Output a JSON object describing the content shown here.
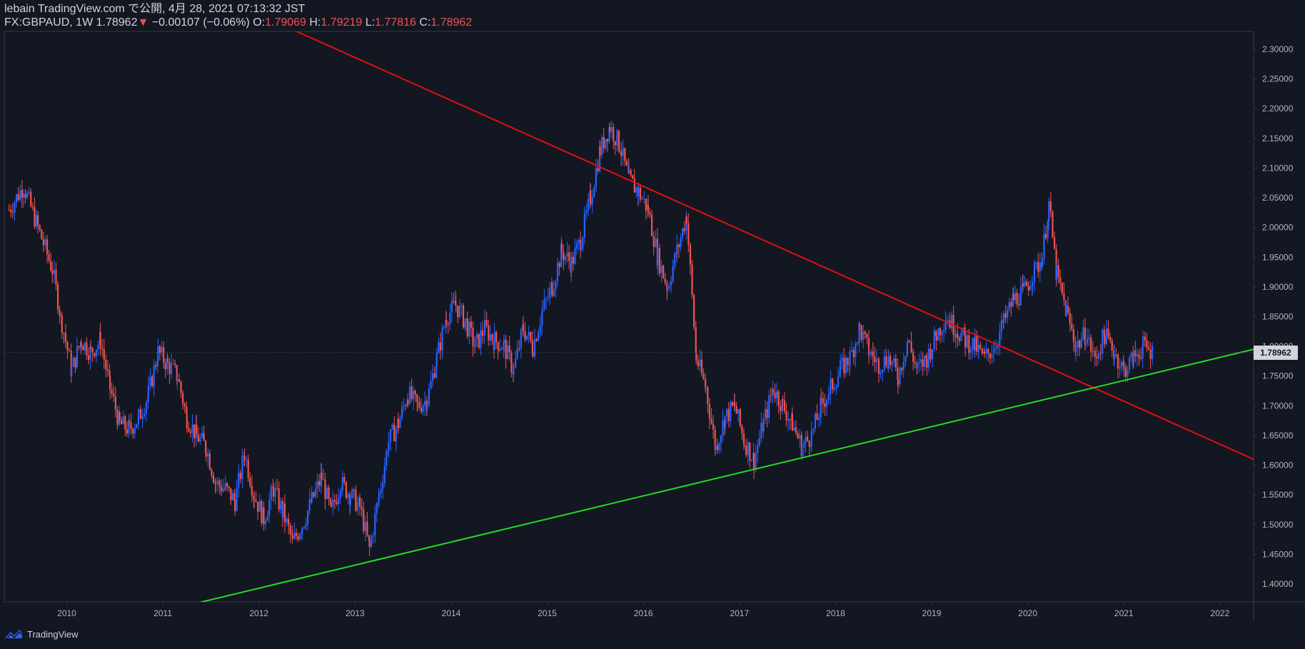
{
  "header": {
    "line1": "lebain TradingView.com で公開, 4月 28, 2021 07:13:32 JST",
    "symbol": "FX:GBPAUD, 1W",
    "last": "1.78962",
    "change_arrow": "▼",
    "change": "−0.00107 (−0.06%)",
    "o_label": "O:",
    "o_value": "1.79069",
    "h_label": "H:",
    "h_value": "1.79219",
    "l_label": "L:",
    "l_value": "1.77816",
    "c_label": "C:",
    "c_value": "1.78962"
  },
  "price_tag": "1.78962",
  "footer": {
    "brand": "TradingView"
  },
  "colors": {
    "background": "#131722",
    "up": "#2962ff",
    "down": "#ef5350",
    "resistance": "#e01010",
    "support": "#22dd22",
    "axis_text": "#b2b5be"
  },
  "chart_data": {
    "type": "candlestick",
    "x_ticks": [
      "2010",
      "2011",
      "2012",
      "2013",
      "2014",
      "2015",
      "2016",
      "2017",
      "2018",
      "2019",
      "2020",
      "2021",
      "2022"
    ],
    "y_ticks": [
      "2.30000",
      "2.25000",
      "2.20000",
      "2.15000",
      "2.10000",
      "2.05000",
      "2.00000",
      "1.95000",
      "1.90000",
      "1.85000",
      "1.80000",
      "1.75000",
      "1.70000",
      "1.65000",
      "1.60000",
      "1.55000",
      "1.50000",
      "1.45000",
      "1.40000"
    ],
    "ylim": [
      1.37,
      2.33
    ],
    "xlim": [
      2009.35,
      2022.35
    ],
    "closes": [
      [
        2009.4,
        2.03
      ],
      [
        2009.55,
        2.07
      ],
      [
        2009.7,
        2.0
      ],
      [
        2009.85,
        1.93
      ],
      [
        2009.95,
        1.84
      ],
      [
        2010.05,
        1.76
      ],
      [
        2010.15,
        1.81
      ],
      [
        2010.25,
        1.79
      ],
      [
        2010.35,
        1.81
      ],
      [
        2010.45,
        1.73
      ],
      [
        2010.55,
        1.67
      ],
      [
        2010.65,
        1.66
      ],
      [
        2010.75,
        1.68
      ],
      [
        2010.85,
        1.72
      ],
      [
        2010.95,
        1.79
      ],
      [
        2011.05,
        1.77
      ],
      [
        2011.15,
        1.75
      ],
      [
        2011.25,
        1.68
      ],
      [
        2011.35,
        1.65
      ],
      [
        2011.45,
        1.63
      ],
      [
        2011.55,
        1.57
      ],
      [
        2011.65,
        1.56
      ],
      [
        2011.75,
        1.54
      ],
      [
        2011.85,
        1.62
      ],
      [
        2011.95,
        1.55
      ],
      [
        2012.05,
        1.51
      ],
      [
        2012.15,
        1.56
      ],
      [
        2012.25,
        1.52
      ],
      [
        2012.35,
        1.47
      ],
      [
        2012.45,
        1.5
      ],
      [
        2012.55,
        1.54
      ],
      [
        2012.65,
        1.58
      ],
      [
        2012.75,
        1.52
      ],
      [
        2012.85,
        1.57
      ],
      [
        2012.95,
        1.55
      ],
      [
        2013.05,
        1.53
      ],
      [
        2013.15,
        1.46
      ],
      [
        2013.25,
        1.55
      ],
      [
        2013.35,
        1.64
      ],
      [
        2013.45,
        1.67
      ],
      [
        2013.55,
        1.72
      ],
      [
        2013.65,
        1.7
      ],
      [
        2013.75,
        1.71
      ],
      [
        2013.85,
        1.78
      ],
      [
        2013.95,
        1.85
      ],
      [
        2014.05,
        1.87
      ],
      [
        2014.15,
        1.84
      ],
      [
        2014.25,
        1.8
      ],
      [
        2014.35,
        1.83
      ],
      [
        2014.45,
        1.81
      ],
      [
        2014.55,
        1.8
      ],
      [
        2014.65,
        1.76
      ],
      [
        2014.75,
        1.83
      ],
      [
        2014.85,
        1.8
      ],
      [
        2014.95,
        1.86
      ],
      [
        2015.05,
        1.9
      ],
      [
        2015.15,
        1.96
      ],
      [
        2015.25,
        1.94
      ],
      [
        2015.35,
        1.98
      ],
      [
        2015.45,
        2.05
      ],
      [
        2015.55,
        2.13
      ],
      [
        2015.65,
        2.17
      ],
      [
        2015.75,
        2.14
      ],
      [
        2015.85,
        2.08
      ],
      [
        2015.95,
        2.06
      ],
      [
        2016.05,
        2.03
      ],
      [
        2016.15,
        1.95
      ],
      [
        2016.25,
        1.9
      ],
      [
        2016.35,
        1.96
      ],
      [
        2016.45,
        2.02
      ],
      [
        2016.55,
        1.78
      ],
      [
        2016.65,
        1.73
      ],
      [
        2016.75,
        1.63
      ],
      [
        2016.85,
        1.68
      ],
      [
        2016.95,
        1.7
      ],
      [
        2017.05,
        1.64
      ],
      [
        2017.15,
        1.61
      ],
      [
        2017.25,
        1.67
      ],
      [
        2017.35,
        1.73
      ],
      [
        2017.45,
        1.7
      ],
      [
        2017.55,
        1.67
      ],
      [
        2017.65,
        1.63
      ],
      [
        2017.75,
        1.65
      ],
      [
        2017.85,
        1.7
      ],
      [
        2017.95,
        1.73
      ],
      [
        2018.05,
        1.76
      ],
      [
        2018.15,
        1.78
      ],
      [
        2018.25,
        1.83
      ],
      [
        2018.35,
        1.79
      ],
      [
        2018.45,
        1.77
      ],
      [
        2018.55,
        1.78
      ],
      [
        2018.65,
        1.75
      ],
      [
        2018.75,
        1.81
      ],
      [
        2018.85,
        1.76
      ],
      [
        2018.95,
        1.78
      ],
      [
        2019.05,
        1.82
      ],
      [
        2019.15,
        1.85
      ],
      [
        2019.25,
        1.83
      ],
      [
        2019.35,
        1.81
      ],
      [
        2019.45,
        1.8
      ],
      [
        2019.55,
        1.78
      ],
      [
        2019.65,
        1.8
      ],
      [
        2019.75,
        1.84
      ],
      [
        2019.85,
        1.88
      ],
      [
        2019.95,
        1.89
      ],
      [
        2020.05,
        1.92
      ],
      [
        2020.15,
        1.95
      ],
      [
        2020.22,
        2.04
      ],
      [
        2020.3,
        1.92
      ],
      [
        2020.4,
        1.86
      ],
      [
        2020.5,
        1.8
      ],
      [
        2020.6,
        1.82
      ],
      [
        2020.7,
        1.78
      ],
      [
        2020.8,
        1.82
      ],
      [
        2020.9,
        1.79
      ],
      [
        2021.0,
        1.76
      ],
      [
        2021.1,
        1.78
      ],
      [
        2021.2,
        1.8
      ],
      [
        2021.3,
        1.79
      ]
    ],
    "trendlines": [
      {
        "name": "resistance",
        "from": [
          2009.35,
          2.55
        ],
        "to": [
          2022.35,
          1.61
        ]
      },
      {
        "name": "support",
        "from": [
          2011.15,
          1.36
        ],
        "to": [
          2022.35,
          1.795
        ]
      }
    ],
    "last_price": 1.78962
  }
}
